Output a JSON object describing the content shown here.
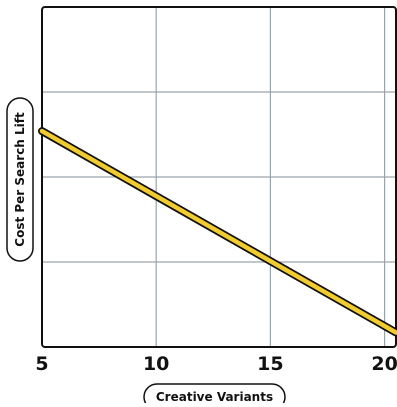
{
  "chart_data": {
    "type": "line",
    "xlabel": "Creative Variants",
    "ylabel": "Cost Per Search Lift",
    "xlim": [
      5,
      20.5
    ],
    "ylim": [
      0,
      4
    ],
    "x_ticks": [
      "5",
      "10",
      "15",
      "20"
    ],
    "y_tick_values": [
      1,
      2,
      3
    ],
    "grid": true,
    "series": [
      {
        "color": "#F2CC2E",
        "x": [
          5,
          20.5
        ],
        "y": [
          2.54,
          0.17
        ]
      }
    ]
  },
  "colors": {
    "line_fill": "#F2CC2E",
    "outline": "#111111",
    "grid": "#9aa3ab",
    "background": "#ffffff"
  }
}
